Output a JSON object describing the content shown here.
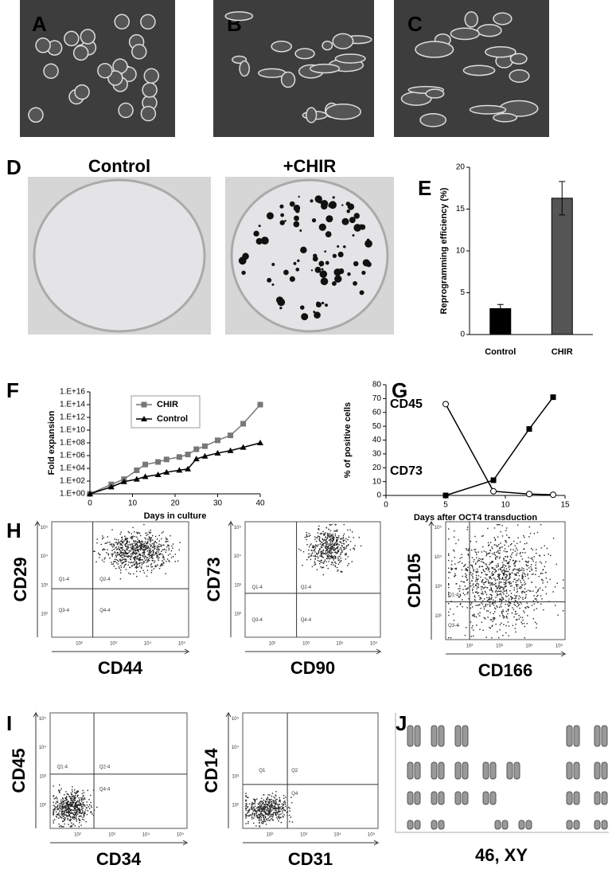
{
  "panel_labels": [
    "A",
    "B",
    "C",
    "D",
    "E",
    "F",
    "G",
    "H",
    "I",
    "J"
  ],
  "plate_labels": [
    "Control",
    "+CHIR"
  ],
  "flow_ticks": [
    "10²",
    "10³",
    "10⁴",
    "10⁵"
  ],
  "flow_plots": [
    {
      "y_label": "CD29",
      "x_label": "CD44",
      "quadrants": [
        "Q1-4",
        "Q2-4",
        "Q3-4",
        "Q4-4"
      ]
    },
    {
      "y_label": "CD73",
      "x_label": "CD90",
      "quadrants": [
        "Q1-4",
        "Q2-4",
        "Q3-4",
        "Q4-4"
      ]
    },
    {
      "y_label": "CD105",
      "x_label": "CD166",
      "quadrants": [
        "Q1-4",
        "Q3-4"
      ]
    },
    {
      "y_label": "CD45",
      "x_label": "CD34",
      "quadrants": [
        "Q1-4",
        "Q2-4",
        "Q4-4"
      ]
    },
    {
      "y_label": "CD14",
      "x_label": "CD31",
      "quadrants": [
        "Q1",
        "Q2",
        "Q4"
      ]
    }
  ],
  "karyotype": "46, XY",
  "chart_data": [
    {
      "type": "bar",
      "categories": [
        "Control",
        "CHIR"
      ],
      "values": [
        3.1,
        16.3
      ],
      "errors": [
        0.5,
        2.0
      ],
      "colors": [
        "#000000",
        "#555555"
      ],
      "ylim": [
        0,
        20
      ],
      "yticks": [
        0,
        5,
        10,
        15,
        20
      ],
      "y_label": "Reprogramming efficiency (%)"
    },
    {
      "type": "line",
      "log_y": true,
      "x_label": "Days in culture",
      "y_label": "Fold expansion",
      "x": [
        0,
        5,
        8,
        11,
        13,
        16,
        18,
        21,
        23,
        25,
        27,
        30,
        33,
        36,
        40
      ],
      "xlim": [
        0,
        40
      ],
      "xticks": [
        0,
        10,
        20,
        30,
        40
      ],
      "ylim": [
        1,
        1e+16
      ],
      "yticks": [
        {
          "value": 1,
          "label": "1.E+00"
        },
        {
          "value": 100,
          "label": "1.E+02"
        },
        {
          "value": 10000,
          "label": "1.E+04"
        },
        {
          "value": 1000000,
          "label": "1.E+06"
        },
        {
          "value": 100000000,
          "label": "1.E+08"
        },
        {
          "value": 10000000000,
          "label": "1.E+10"
        },
        {
          "value": 1000000000000,
          "label": "1.E+12"
        },
        {
          "value": 100000000000000,
          "label": "1.E+14"
        },
        {
          "value": 10000000000000000,
          "label": "1.E+16"
        }
      ],
      "legend": "inside-top",
      "series": [
        {
          "name": "CHIR",
          "color": "#777777",
          "marker": "square",
          "values": [
            1,
            30,
            200,
            5000,
            40000,
            100000,
            250000,
            600000,
            1500000,
            10000000,
            30000000,
            250000000,
            1500000000,
            100000000000,
            100000000000000
          ]
        },
        {
          "name": "Control",
          "color": "#000000",
          "marker": "triangle",
          "values": [
            1,
            12,
            80,
            200,
            500,
            1000,
            2500,
            5000,
            8000,
            300000,
            800000,
            2500000,
            6000000,
            20000000,
            100000000
          ]
        }
      ]
    },
    {
      "type": "line",
      "x_label": "Days after OCT4 transduction",
      "y_label": "% of positive cells",
      "x": [
        5,
        9,
        12,
        14
      ],
      "xlim": [
        0,
        15
      ],
      "xticks": [
        0,
        5,
        10,
        15
      ],
      "ylim": [
        0,
        80
      ],
      "yticks": [
        0,
        10,
        20,
        30,
        40,
        50,
        60,
        70,
        80
      ],
      "legend": "left-labels",
      "series": [
        {
          "name": "CD45",
          "color": "#000000",
          "marker": "open-circle",
          "values": [
            66,
            3,
            1,
            0.5
          ]
        },
        {
          "name": "CD73",
          "color": "#000000",
          "marker": "square",
          "values": [
            0,
            11,
            48,
            71
          ]
        }
      ]
    }
  ]
}
